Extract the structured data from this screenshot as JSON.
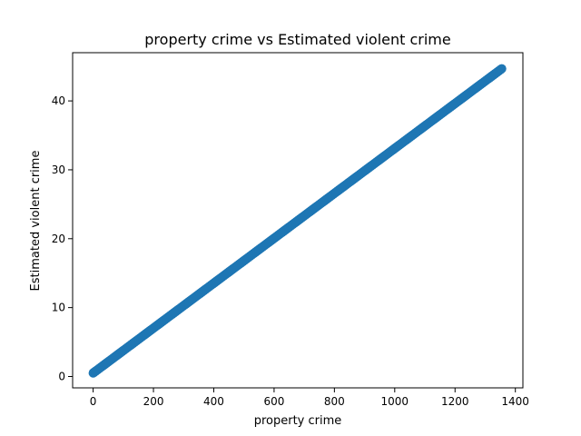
{
  "chart_data": {
    "type": "scatter",
    "title": "property crime vs Estimated violent crime",
    "xlabel": "property crime",
    "ylabel": "Estimated violent crime",
    "xlim": [
      -68,
      1425
    ],
    "ylim": [
      -1.65,
      47
    ],
    "xticks": [
      0,
      200,
      400,
      600,
      800,
      1000,
      1200,
      1400
    ],
    "yticks": [
      0,
      10,
      20,
      30,
      40
    ],
    "grid": false,
    "legend": "none",
    "series": [
      {
        "color": "#1f77b4",
        "x_min": 0,
        "x_max": 1355,
        "slope": 0.0326,
        "intercept": 0.5,
        "x": [
          0,
          50,
          100,
          150,
          200,
          250,
          300,
          350,
          400,
          450,
          500,
          550,
          600,
          650,
          700,
          750,
          800,
          850,
          900,
          950,
          1000,
          1050,
          1100,
          1150,
          1200,
          1250,
          1300,
          1355
        ],
        "y": [
          0.5,
          2.13,
          3.76,
          5.39,
          7.02,
          8.65,
          10.28,
          11.91,
          13.54,
          15.17,
          16.8,
          18.43,
          20.06,
          21.69,
          23.32,
          24.95,
          26.58,
          28.21,
          29.84,
          31.47,
          33.1,
          34.73,
          36.36,
          37.99,
          39.62,
          41.25,
          42.88,
          44.67
        ]
      }
    ]
  }
}
